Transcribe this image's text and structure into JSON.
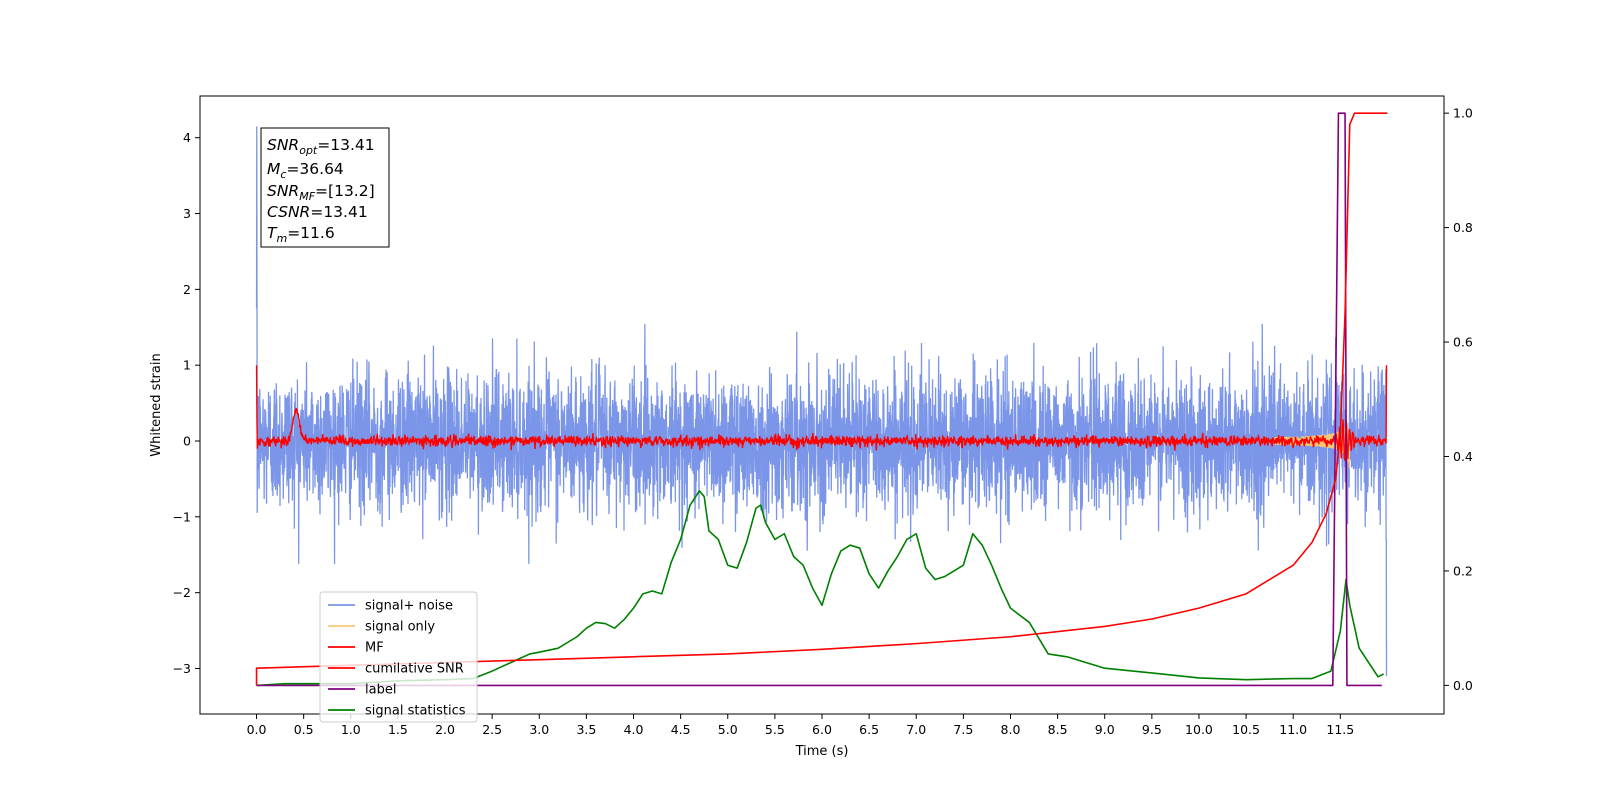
{
  "chart_data": {
    "type": "line",
    "xlabel": "Time (s)",
    "ylabel_left": "Whitened strain",
    "ylabel_right": "",
    "xlim": [
      -0.6,
      12.6
    ],
    "ylim_left": [
      -3.6,
      4.55
    ],
    "ylim_right": [
      -0.05,
      1.03
    ],
    "x_ticks": [
      0.0,
      0.5,
      1.0,
      1.5,
      2.0,
      2.5,
      3.0,
      3.5,
      4.0,
      4.5,
      5.0,
      5.5,
      6.0,
      6.5,
      7.0,
      7.5,
      8.0,
      8.5,
      9.0,
      9.5,
      10.0,
      10.5,
      11.0,
      11.5
    ],
    "x_tick_labels": [
      "0.0",
      "0.5",
      "1.0",
      "1.5",
      "2.0",
      "2.5",
      "3.0",
      "3.5",
      "4.0",
      "4.5",
      "5.0",
      "5.5",
      "6.0",
      "6.5",
      "7.0",
      "7.5",
      "8.0",
      "8.5",
      "9.0",
      "9.5",
      "10.0",
      "10.5",
      "11.0",
      "11.5"
    ],
    "y_left_ticks": [
      -3,
      -2,
      -1,
      0,
      1,
      2,
      3,
      4
    ],
    "y_left_tick_labels": [
      "−3",
      "−2",
      "−1",
      "0",
      "1",
      "2",
      "3",
      "4"
    ],
    "y_right_ticks": [
      0.0,
      0.2,
      0.4,
      0.6,
      0.8,
      1.0
    ],
    "y_right_tick_labels": [
      "0.0",
      "0.2",
      "0.4",
      "0.6",
      "0.8",
      "1.0"
    ],
    "grid": false,
    "legend_position": "lower-left",
    "annotation": {
      "lines": [
        {
          "sym": "SNR",
          "sub": "opt",
          "val": "=13.41"
        },
        {
          "sym": "M",
          "sub": "c",
          "val": "=36.64"
        },
        {
          "sym": "SNR",
          "sub": "MF",
          "val": "=[13.2]"
        },
        {
          "sym": "CSNR",
          "sub": "",
          "val": "=13.41"
        },
        {
          "sym": "T",
          "sub": "m",
          "val": "=11.6"
        }
      ]
    },
    "series": [
      {
        "name": "signal+ noise",
        "axis": "left",
        "color": "#7b96e8",
        "style": "noise",
        "x_range": [
          0.0,
          11.99
        ],
        "amplitude_range": [
          -1.5,
          1.5
        ],
        "spike_at_start": 4.15
      },
      {
        "name": "signal only",
        "axis": "left",
        "color": "#f5c878",
        "style": "chirp",
        "x_range": [
          0.0,
          11.99
        ],
        "peak_amplitude": 0.45,
        "merger_time": 11.6
      },
      {
        "name": "MF",
        "axis": "left",
        "color": "#ff0000",
        "style": "noise",
        "x_range": [
          0.0,
          11.99
        ],
        "amplitude_range": [
          -0.1,
          0.1
        ],
        "start_value": 1.0,
        "bump": {
          "x": 0.42,
          "y": 0.4
        }
      },
      {
        "name": "cumilative SNR",
        "axis": "right",
        "color": "#ff0000",
        "x": [
          0.0,
          0.0,
          1.0,
          2.0,
          3.0,
          4.0,
          5.0,
          6.0,
          7.0,
          8.0,
          9.0,
          9.5,
          10.0,
          10.5,
          11.0,
          11.2,
          11.35,
          11.45,
          11.5,
          11.55,
          11.6,
          11.65,
          11.7,
          12.0
        ],
        "y": [
          0.0,
          0.03,
          0.035,
          0.04,
          0.045,
          0.05,
          0.055,
          0.063,
          0.073,
          0.085,
          0.103,
          0.116,
          0.135,
          0.16,
          0.21,
          0.25,
          0.3,
          0.36,
          0.44,
          0.65,
          0.98,
          1.0,
          1.0,
          1.0
        ]
      },
      {
        "name": "label",
        "axis": "right",
        "color": "#800080",
        "x": [
          0.0,
          11.42,
          11.48,
          11.55,
          11.57,
          11.64,
          11.94
        ],
        "y": [
          0.0,
          0.0,
          1.0,
          1.0,
          0.0,
          0.0,
          0.0
        ]
      },
      {
        "name": "signal statistics",
        "axis": "right",
        "color": "#008000",
        "x": [
          0.0,
          0.3,
          0.5,
          1.0,
          1.5,
          2.0,
          2.3,
          2.5,
          2.7,
          2.9,
          3.0,
          3.2,
          3.4,
          3.5,
          3.6,
          3.7,
          3.8,
          3.9,
          4.0,
          4.1,
          4.2,
          4.3,
          4.4,
          4.5,
          4.6,
          4.7,
          4.75,
          4.8,
          4.9,
          5.0,
          5.1,
          5.2,
          5.3,
          5.35,
          5.4,
          5.5,
          5.6,
          5.7,
          5.8,
          5.9,
          6.0,
          6.1,
          6.2,
          6.3,
          6.4,
          6.5,
          6.6,
          6.7,
          6.8,
          6.9,
          7.0,
          7.1,
          7.2,
          7.3,
          7.4,
          7.5,
          7.6,
          7.7,
          7.8,
          7.9,
          8.0,
          8.2,
          8.4,
          8.6,
          8.8,
          9.0,
          9.3,
          9.6,
          10.0,
          10.5,
          11.0,
          11.2,
          11.4,
          11.5,
          11.56,
          11.6,
          11.7,
          11.8,
          11.9,
          11.96
        ],
        "y": [
          0.0,
          0.003,
          0.003,
          0.003,
          0.008,
          0.01,
          0.012,
          0.025,
          0.04,
          0.055,
          0.058,
          0.065,
          0.085,
          0.1,
          0.11,
          0.108,
          0.1,
          0.115,
          0.135,
          0.16,
          0.165,
          0.16,
          0.215,
          0.255,
          0.315,
          0.34,
          0.33,
          0.27,
          0.255,
          0.21,
          0.205,
          0.25,
          0.31,
          0.315,
          0.285,
          0.255,
          0.265,
          0.225,
          0.21,
          0.17,
          0.14,
          0.195,
          0.235,
          0.245,
          0.24,
          0.195,
          0.17,
          0.2,
          0.225,
          0.255,
          0.265,
          0.205,
          0.185,
          0.19,
          0.2,
          0.21,
          0.265,
          0.245,
          0.21,
          0.17,
          0.135,
          0.11,
          0.055,
          0.05,
          0.04,
          0.03,
          0.025,
          0.02,
          0.013,
          0.01,
          0.012,
          0.012,
          0.025,
          0.095,
          0.185,
          0.14,
          0.065,
          0.04,
          0.015,
          0.02
        ]
      }
    ]
  }
}
